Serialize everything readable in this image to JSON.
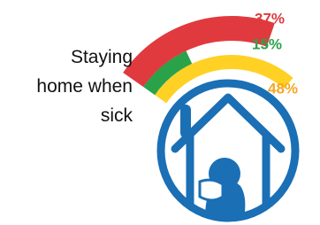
{
  "chart_data": {
    "type": "radial_bar",
    "title": "Staying home when sick",
    "values": [
      37,
      15,
      48
    ],
    "value_labels": [
      "37%",
      "15%",
      "48%"
    ],
    "colors": [
      "#e03a3e",
      "#2aa24a",
      "#ffd124"
    ],
    "label_colors": [
      "#e03a3e",
      "#2aa24a",
      "#f5a623"
    ]
  }
}
